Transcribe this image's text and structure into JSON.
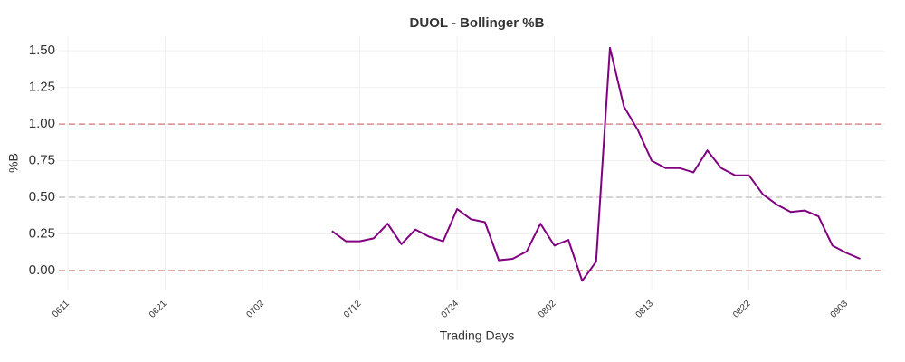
{
  "chart_data": {
    "type": "line",
    "title": "DUOL - Bollinger %B",
    "x_label": "Trading Days",
    "y_label": "%B",
    "categories": [
      "0611",
      null,
      null,
      null,
      null,
      null,
      null,
      "0621",
      null,
      null,
      null,
      null,
      null,
      null,
      "0702",
      null,
      null,
      null,
      null,
      null,
      null,
      "0712",
      null,
      null,
      null,
      null,
      null,
      null,
      "0724",
      null,
      null,
      null,
      null,
      null,
      null,
      "0802",
      null,
      null,
      null,
      null,
      null,
      null,
      "0813",
      null,
      null,
      null,
      null,
      null,
      null,
      "0822",
      null,
      null,
      null,
      null,
      null,
      null,
      "0903",
      null
    ],
    "series": [
      {
        "name": "%B",
        "color": "#800080",
        "values": [
          null,
          null,
          null,
          null,
          null,
          null,
          null,
          null,
          null,
          null,
          null,
          null,
          null,
          null,
          null,
          null,
          null,
          null,
          null,
          0.27,
          0.2,
          0.2,
          0.22,
          0.32,
          0.18,
          0.28,
          0.23,
          0.2,
          0.42,
          0.35,
          0.33,
          0.07,
          0.08,
          0.13,
          0.32,
          0.17,
          0.21,
          -0.07,
          0.06,
          1.52,
          1.12,
          0.96,
          0.75,
          0.7,
          0.7,
          0.67,
          0.82,
          0.7,
          0.65,
          0.65,
          0.52,
          0.45,
          0.4,
          0.41,
          0.37,
          0.17,
          0.12,
          0.08
        ]
      }
    ],
    "reference_lines": [
      {
        "value": 1.0,
        "color": "#d98c8c"
      },
      {
        "value": 0.5,
        "color": "#c8c8c8"
      },
      {
        "value": 0.0,
        "color": "#d98c8c"
      }
    ],
    "ylim": [
      -0.13,
      1.6
    ],
    "yticks": [
      {
        "value": 0,
        "label": "0.00"
      },
      0.25,
      {
        "value": 0.5,
        "label": "0.50"
      },
      0.75,
      {
        "value": 1,
        "label": "1.00"
      },
      {
        "value": 1.25,
        "label": "1.25"
      },
      {
        "value": 1.5,
        "label": "1.50"
      }
    ],
    "grid": true
  }
}
